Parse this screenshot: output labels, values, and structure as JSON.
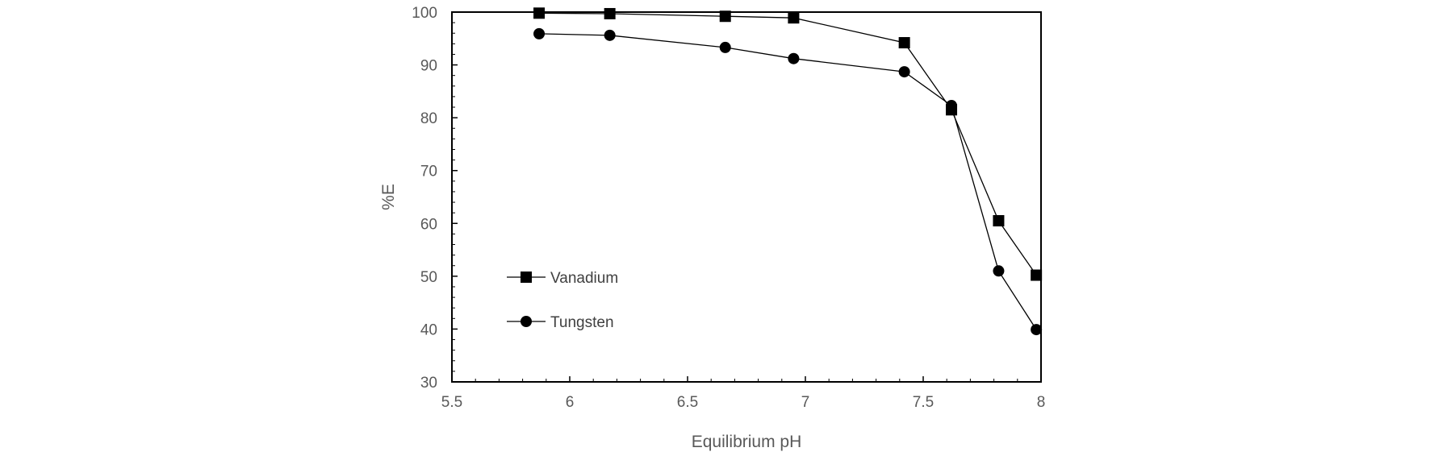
{
  "chart_data": {
    "type": "line",
    "title": "",
    "xlabel": "Equilibrium pH",
    "ylabel": "%E",
    "xlim": [
      5.5,
      8
    ],
    "ylim": [
      30,
      100
    ],
    "x_ticks": [
      5.5,
      6,
      6.5,
      7,
      7.5,
      8
    ],
    "x_tick_labels": [
      "5.5",
      "6",
      "6.5",
      "7",
      "7.5",
      "8"
    ],
    "y_ticks": [
      30,
      40,
      50,
      60,
      70,
      80,
      90,
      100
    ],
    "y_tick_labels": [
      "30",
      "40",
      "50",
      "60",
      "70",
      "80",
      "90",
      "100"
    ],
    "grid": false,
    "legend_position": "lower-left",
    "series": [
      {
        "name": "Vanadium",
        "marker": "square",
        "color": "#000000",
        "x": [
          5.87,
          6.17,
          6.66,
          6.95,
          7.42,
          7.62,
          7.82,
          7.98
        ],
        "y": [
          99.8,
          99.7,
          99.2,
          98.9,
          94.2,
          81.5,
          60.5,
          50.2
        ]
      },
      {
        "name": "Tungsten",
        "marker": "circle",
        "color": "#000000",
        "x": [
          5.87,
          6.17,
          6.66,
          6.95,
          7.42,
          7.62,
          7.82,
          7.98
        ],
        "y": [
          95.9,
          95.6,
          93.3,
          91.2,
          88.7,
          82.3,
          51.0,
          39.9
        ]
      }
    ]
  }
}
